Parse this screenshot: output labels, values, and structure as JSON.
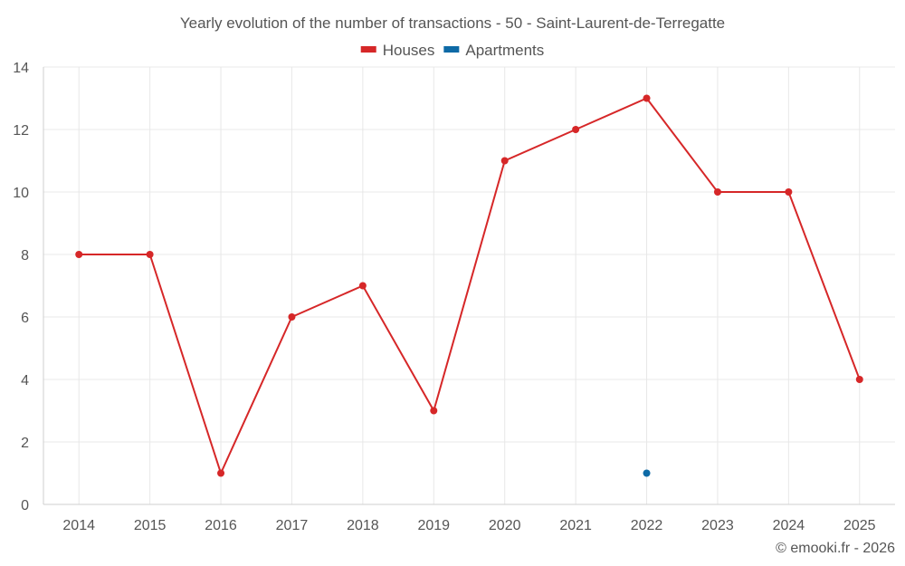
{
  "chart_data": {
    "type": "line",
    "title": "Yearly evolution of the number of transactions - 50 - Saint-Laurent-de-Terregatte",
    "categories": [
      "2014",
      "2015",
      "2016",
      "2017",
      "2018",
      "2019",
      "2020",
      "2021",
      "2022",
      "2023",
      "2024",
      "2025"
    ],
    "series": [
      {
        "name": "Houses",
        "color": "#d62728",
        "values": [
          8,
          8,
          1,
          6,
          7,
          3,
          11,
          12,
          13,
          10,
          10,
          4
        ]
      },
      {
        "name": "Apartments",
        "color": "#0e6aa6",
        "values": [
          null,
          null,
          null,
          null,
          null,
          null,
          null,
          null,
          1,
          null,
          null,
          null
        ]
      }
    ],
    "ylim": [
      0,
      14
    ],
    "yticks": [
      0,
      2,
      4,
      6,
      8,
      10,
      12,
      14
    ],
    "xlabel": "",
    "ylabel": "",
    "grid": true,
    "legend": "top-center"
  },
  "credit": "© emooki.fr - 2026"
}
